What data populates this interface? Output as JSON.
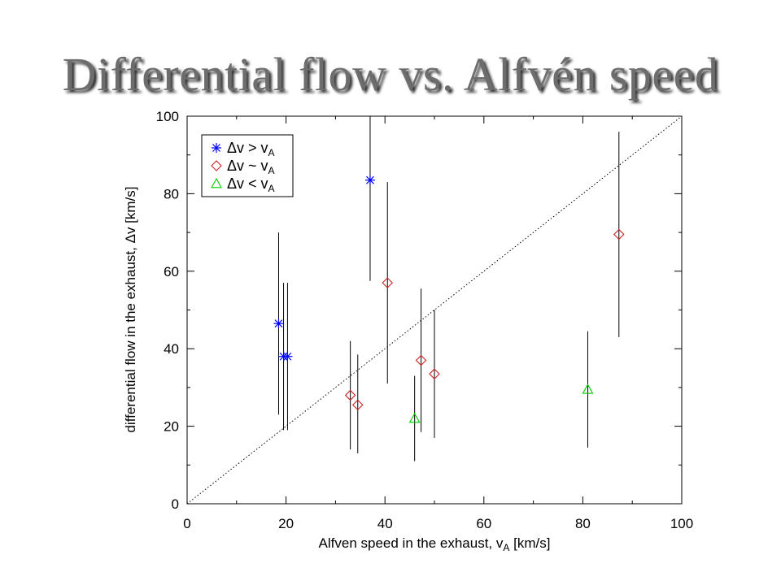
{
  "slide": {
    "title": "Differential flow vs. Alfvén speed"
  },
  "chart_data": {
    "type": "scatter",
    "title": "Differential flow vs. Alfvén speed",
    "xlabel": {
      "main": "Alfven speed in the exhaust, v",
      "sub": "A",
      "tail": " [km/s]"
    },
    "ylabel": {
      "main": "differential flow in the exhaust, ",
      "delta": "Δ",
      "tail": "v [km/s]"
    },
    "xlim": [
      0,
      100
    ],
    "ylim": [
      0,
      100
    ],
    "xticks": [
      0,
      20,
      40,
      60,
      80,
      100
    ],
    "yticks": [
      0,
      20,
      40,
      60,
      80,
      100
    ],
    "grid": false,
    "legend_position": "top-left",
    "reference_line": {
      "type": "y=x",
      "style": "dotted"
    },
    "series": [
      {
        "name": "Δv > vA",
        "label_main": "Δv > v",
        "label_sub": "A",
        "marker": "asterisk",
        "color": "#0000ff",
        "points": [
          {
            "x": 18.5,
            "y": 46.5,
            "ylow": 23,
            "yhigh": 70
          },
          {
            "x": 19.5,
            "y": 38,
            "ylow": 19,
            "yhigh": 57
          },
          {
            "x": 20.3,
            "y": 38,
            "ylow": 19,
            "yhigh": 57
          },
          {
            "x": 37,
            "y": 83.5,
            "ylow": 57.5,
            "yhigh": 100
          }
        ]
      },
      {
        "name": "Δv ~ vA",
        "label_main": "Δv ~ v",
        "label_sub": "A",
        "marker": "diamond",
        "color": "#cc2222",
        "points": [
          {
            "x": 33,
            "y": 28,
            "ylow": 14,
            "yhigh": 42
          },
          {
            "x": 34.5,
            "y": 25.5,
            "ylow": 13,
            "yhigh": 38.5
          },
          {
            "x": 40.5,
            "y": 57,
            "ylow": 31,
            "yhigh": 83
          },
          {
            "x": 47.3,
            "y": 37,
            "ylow": 18.5,
            "yhigh": 55.5
          },
          {
            "x": 50,
            "y": 33.5,
            "ylow": 17,
            "yhigh": 50
          },
          {
            "x": 87.3,
            "y": 69.5,
            "ylow": 43,
            "yhigh": 96
          }
        ]
      },
      {
        "name": "Δv < vA",
        "label_main": "Δv < v",
        "label_sub": "A",
        "marker": "triangle",
        "color": "#00cc00",
        "points": [
          {
            "x": 46,
            "y": 22,
            "ylow": 11,
            "yhigh": 33
          },
          {
            "x": 81,
            "y": 29.5,
            "ylow": 14.5,
            "yhigh": 44.5
          }
        ]
      }
    ]
  }
}
